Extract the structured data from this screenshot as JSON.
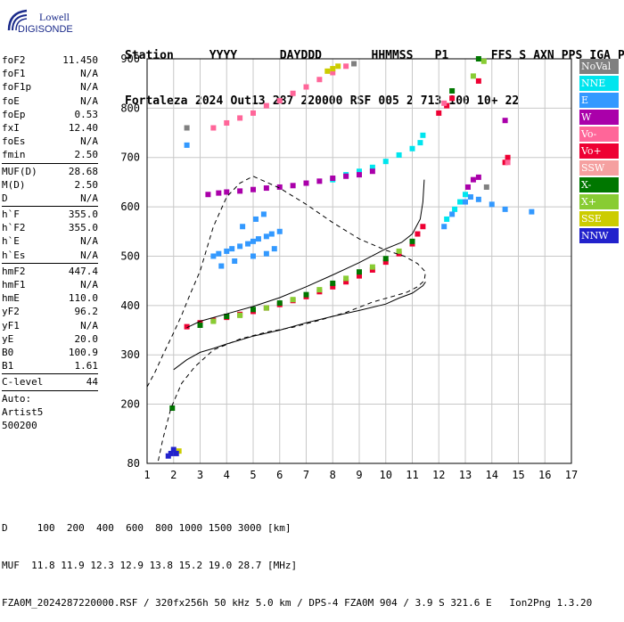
{
  "logo": {
    "line1": "Lowell",
    "line2": "DIGISONDE"
  },
  "header": {
    "labels": [
      "Station",
      "YYYY",
      "DAY",
      "DDD",
      "HHMMSS",
      "P1",
      "FFS",
      "S",
      "AXN",
      "PPS",
      "IGA",
      "PS"
    ],
    "values": [
      "Fortaleza",
      "2024",
      "Out13",
      "287",
      "220000",
      "RSF",
      "005",
      "2",
      "713",
      "100",
      "10+",
      "22"
    ]
  },
  "params_groups": [
    [
      {
        "k": "foF2",
        "v": "11.450"
      },
      {
        "k": "foF1",
        "v": "N/A"
      },
      {
        "k": "foF1p",
        "v": "N/A"
      },
      {
        "k": "foE",
        "v": "N/A"
      },
      {
        "k": "foEp",
        "v": "0.53"
      },
      {
        "k": "fxI",
        "v": "12.40"
      },
      {
        "k": "foEs",
        "v": "N/A"
      },
      {
        "k": "fmin",
        "v": "2.50"
      }
    ],
    [
      {
        "k": "MUF(D)",
        "v": "28.68"
      },
      {
        "k": "M(D)",
        "v": "2.50"
      },
      {
        "k": "D",
        "v": "N/A"
      }
    ],
    [
      {
        "k": "h`F",
        "v": "355.0"
      },
      {
        "k": "h`F2",
        "v": "355.0"
      },
      {
        "k": "h`E",
        "v": "N/A"
      },
      {
        "k": "h`Es",
        "v": "N/A"
      }
    ],
    [
      {
        "k": "hmF2",
        "v": "447.4"
      },
      {
        "k": "hmF1",
        "v": "N/A"
      },
      {
        "k": "hmE",
        "v": "110.0"
      },
      {
        "k": "yF2",
        "v": "96.2"
      },
      {
        "k": "yF1",
        "v": "N/A"
      },
      {
        "k": "yE",
        "v": "20.0"
      },
      {
        "k": "B0",
        "v": "100.9"
      },
      {
        "k": "B1",
        "v": "1.61"
      }
    ],
    [
      {
        "k": "C-level",
        "v": "44"
      }
    ]
  ],
  "auto": [
    "Auto:",
    "Artist5",
    "500200"
  ],
  "legend": [
    {
      "label": "NoVal",
      "color": "#808080",
      "text_color": "#ffffff"
    },
    {
      "label": "NNE",
      "color": "#00e5ee",
      "text_color": "#ffffff"
    },
    {
      "label": "E",
      "color": "#3399ff",
      "text_color": "#ffffff"
    },
    {
      "label": "W",
      "color": "#aa00aa",
      "text_color": "#ffffff"
    },
    {
      "label": "Vo-",
      "color": "#ff6699",
      "text_color": "#ffffff"
    },
    {
      "label": "Vo+",
      "color": "#ee0033",
      "text_color": "#ffffff"
    },
    {
      "label": "SSW",
      "color": "#f5a0a0",
      "text_color": "#ffffff"
    },
    {
      "label": "X-",
      "color": "#007700",
      "text_color": "#ffffff"
    },
    {
      "label": "X+",
      "color": "#88cc33",
      "text_color": "#ffffff"
    },
    {
      "label": "SSE",
      "color": "#cccc00",
      "text_color": "#ffffff"
    },
    {
      "label": "NNW",
      "color": "#2222cc",
      "text_color": "#ffffff"
    }
  ],
  "footer": {
    "d_line": "D     100  200  400  600  800 1000 1500 3000 [km]",
    "muf_line": "MUF  11.8 11.9 12.3 12.9 13.8 15.2 19.0 28.7 [MHz]",
    "file_line": "FZA0M_2024287220000.RSF / 320fx256h 50 kHz 5.0 km / DPS-4 FZA0M 904 / 3.9 S 321.6 E   Ion2Png 1.3.20"
  },
  "chart_data": {
    "type": "scatter",
    "xlim": [
      1,
      17
    ],
    "ylim": [
      80,
      900
    ],
    "xticks": [
      1,
      2,
      3,
      4,
      5,
      6,
      7,
      8,
      9,
      10,
      11,
      12,
      13,
      14,
      15,
      16,
      17
    ],
    "yticks": [
      80,
      200,
      300,
      400,
      500,
      600,
      700,
      800,
      900
    ],
    "grid": true,
    "profile_dashed": [
      [
        1.0,
        235
      ],
      [
        1.3,
        265
      ],
      [
        1.6,
        300
      ],
      [
        2.0,
        345
      ],
      [
        2.3,
        380
      ],
      [
        2.6,
        420
      ],
      [
        3.0,
        470
      ],
      [
        3.5,
        560
      ],
      [
        4.0,
        620
      ],
      [
        4.5,
        648
      ],
      [
        5.0,
        662
      ],
      [
        6.0,
        638
      ],
      [
        7.0,
        605
      ],
      [
        8.0,
        568
      ],
      [
        9.0,
        535
      ],
      [
        10.0,
        512
      ],
      [
        10.7,
        500
      ],
      [
        11.2,
        485
      ],
      [
        11.5,
        468
      ],
      [
        11.45,
        450
      ],
      [
        11.2,
        438
      ],
      [
        10.8,
        427
      ],
      [
        10.3,
        419
      ],
      [
        9.5,
        407
      ],
      [
        8.5,
        386
      ],
      [
        7.5,
        370
      ],
      [
        6.5,
        356
      ],
      [
        5.5,
        346
      ],
      [
        4.5,
        332
      ],
      [
        3.5,
        310
      ],
      [
        2.8,
        276
      ],
      [
        2.3,
        242
      ],
      [
        1.9,
        192
      ],
      [
        1.6,
        130
      ],
      [
        1.4,
        80
      ]
    ],
    "profile_solid": [
      [
        2.5,
        355
      ],
      [
        3.0,
        368
      ],
      [
        4.0,
        383
      ],
      [
        5.0,
        398
      ],
      [
        6.0,
        416
      ],
      [
        7.0,
        438
      ],
      [
        8.0,
        462
      ],
      [
        9.0,
        487
      ],
      [
        10.0,
        515
      ],
      [
        10.6,
        528
      ],
      [
        11.0,
        545
      ],
      [
        11.3,
        575
      ],
      [
        11.4,
        610
      ],
      [
        11.45,
        655
      ]
    ],
    "truehf_solid": [
      [
        2.0,
        270
      ],
      [
        2.5,
        290
      ],
      [
        3.0,
        305
      ],
      [
        3.5,
        313
      ],
      [
        4.0,
        322
      ],
      [
        5.0,
        338
      ],
      [
        6.0,
        350
      ],
      [
        7.0,
        365
      ],
      [
        8.0,
        378
      ],
      [
        9.0,
        390
      ],
      [
        10.0,
        403
      ],
      [
        10.5,
        415
      ],
      [
        11.0,
        425
      ],
      [
        11.4,
        440
      ],
      [
        11.5,
        448
      ]
    ],
    "series": [
      {
        "name": "Vo+",
        "color": "#ee0033",
        "points": [
          [
            2.5,
            357
          ],
          [
            3.0,
            365
          ],
          [
            3.5,
            370
          ],
          [
            4.0,
            376
          ],
          [
            4.5,
            382
          ],
          [
            5.0,
            388
          ],
          [
            5.5,
            395
          ],
          [
            6.0,
            402
          ],
          [
            6.5,
            410
          ],
          [
            7.0,
            418
          ],
          [
            7.5,
            428
          ],
          [
            8.0,
            438
          ],
          [
            8.5,
            448
          ],
          [
            9.0,
            460
          ],
          [
            9.5,
            472
          ],
          [
            10.0,
            488
          ],
          [
            10.5,
            505
          ],
          [
            11.0,
            525
          ],
          [
            11.2,
            545
          ],
          [
            11.4,
            560
          ],
          [
            12.0,
            790
          ],
          [
            12.3,
            805
          ],
          [
            12.5,
            820
          ],
          [
            13.5,
            855
          ],
          [
            14.5,
            690
          ],
          [
            14.6,
            700
          ]
        ]
      },
      {
        "name": "NNE",
        "color": "#00e5ee",
        "points": [
          [
            8.0,
            655
          ],
          [
            8.5,
            665
          ],
          [
            9.0,
            672
          ],
          [
            9.5,
            680
          ],
          [
            10.0,
            692
          ],
          [
            10.5,
            705
          ],
          [
            11.0,
            718
          ],
          [
            11.3,
            730
          ],
          [
            11.4,
            745
          ],
          [
            12.3,
            575
          ],
          [
            12.6,
            595
          ],
          [
            12.8,
            610
          ],
          [
            13.0,
            625
          ]
        ]
      },
      {
        "name": "W",
        "color": "#aa00aa",
        "points": [
          [
            3.3,
            625
          ],
          [
            3.7,
            628
          ],
          [
            4.0,
            630
          ],
          [
            4.5,
            632
          ],
          [
            5.0,
            635
          ],
          [
            5.5,
            638
          ],
          [
            6.0,
            640
          ],
          [
            6.5,
            643
          ],
          [
            7.0,
            648
          ],
          [
            7.5,
            652
          ],
          [
            8.0,
            658
          ],
          [
            8.5,
            662
          ],
          [
            9.0,
            665
          ],
          [
            9.5,
            672
          ],
          [
            13.1,
            640
          ],
          [
            13.3,
            655
          ],
          [
            13.5,
            660
          ],
          [
            14.5,
            775
          ]
        ]
      },
      {
        "name": "E",
        "color": "#3399ff",
        "points": [
          [
            3.5,
            500
          ],
          [
            3.7,
            505
          ],
          [
            4.0,
            510
          ],
          [
            4.2,
            515
          ],
          [
            4.5,
            520
          ],
          [
            4.8,
            525
          ],
          [
            5.0,
            530
          ],
          [
            5.2,
            535
          ],
          [
            5.5,
            540
          ],
          [
            5.7,
            545
          ],
          [
            6.0,
            550
          ],
          [
            3.8,
            480
          ],
          [
            4.3,
            490
          ],
          [
            5.0,
            500
          ],
          [
            5.5,
            505
          ],
          [
            5.8,
            515
          ],
          [
            4.6,
            560
          ],
          [
            5.1,
            575
          ],
          [
            5.4,
            585
          ],
          [
            2.5,
            725
          ],
          [
            12.2,
            560
          ],
          [
            12.5,
            585
          ],
          [
            13.0,
            610
          ],
          [
            13.2,
            620
          ],
          [
            13.5,
            615
          ],
          [
            14.0,
            605
          ],
          [
            14.5,
            595
          ],
          [
            15.5,
            590
          ]
        ]
      },
      {
        "name": "Vo-",
        "color": "#ff6699",
        "points": [
          [
            3.5,
            760
          ],
          [
            4.0,
            770
          ],
          [
            4.5,
            780
          ],
          [
            5.0,
            790
          ],
          [
            5.5,
            805
          ],
          [
            6.0,
            815
          ],
          [
            6.5,
            830
          ],
          [
            7.0,
            843
          ],
          [
            7.5,
            858
          ],
          [
            8.0,
            872
          ],
          [
            8.5,
            885
          ],
          [
            12.2,
            810
          ],
          [
            14.6,
            690
          ]
        ]
      },
      {
        "name": "X-",
        "color": "#007700",
        "points": [
          [
            3.0,
            360
          ],
          [
            4.0,
            378
          ],
          [
            5.0,
            392
          ],
          [
            6.0,
            405
          ],
          [
            7.0,
            422
          ],
          [
            8.0,
            445
          ],
          [
            9.0,
            468
          ],
          [
            10.0,
            495
          ],
          [
            11.0,
            530
          ],
          [
            13.5,
            900
          ],
          [
            1.95,
            192
          ],
          [
            12.5,
            835
          ]
        ]
      },
      {
        "name": "X+",
        "color": "#88cc33",
        "points": [
          [
            3.5,
            368
          ],
          [
            4.5,
            380
          ],
          [
            5.5,
            395
          ],
          [
            6.5,
            412
          ],
          [
            7.5,
            432
          ],
          [
            8.5,
            455
          ],
          [
            9.5,
            478
          ],
          [
            10.5,
            510
          ],
          [
            13.7,
            895
          ],
          [
            13.3,
            865
          ]
        ]
      },
      {
        "name": "SSE",
        "color": "#cccc00",
        "points": [
          [
            7.8,
            875
          ],
          [
            8.0,
            880
          ],
          [
            8.2,
            885
          ],
          [
            2.2,
            105
          ]
        ]
      },
      {
        "name": "NNW",
        "color": "#2222cc",
        "points": [
          [
            1.9,
            100
          ],
          [
            2.0,
            108
          ],
          [
            2.1,
            100
          ],
          [
            1.8,
            95
          ]
        ]
      },
      {
        "name": "NoVal",
        "color": "#808080",
        "points": [
          [
            2.5,
            760
          ],
          [
            8.8,
            890
          ],
          [
            13.8,
            640
          ]
        ]
      }
    ]
  }
}
